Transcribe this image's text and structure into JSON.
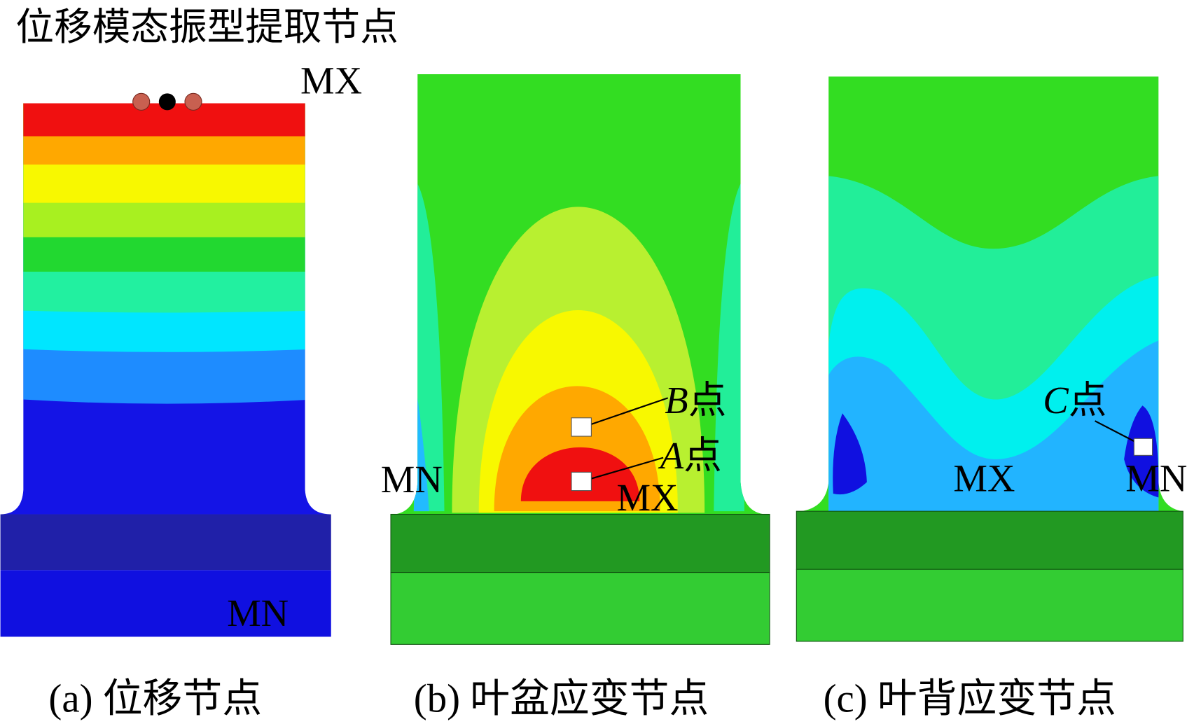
{
  "title": "位移模态振型提取节点",
  "panels": [
    {
      "caption": "(a) 位移节点",
      "mx": "MX",
      "mn": "MN"
    },
    {
      "caption": "(b) 叶盆应变节点",
      "mn": "MN",
      "mx": "MX",
      "points": [
        {
          "letter": "B",
          "suffix": "点"
        },
        {
          "letter": "A",
          "suffix": "点"
        }
      ]
    },
    {
      "caption": "(c) 叶背应变节点",
      "mx": "MX",
      "mn": "MN",
      "points": [
        {
          "letter": "C",
          "suffix": "点"
        }
      ]
    }
  ]
}
